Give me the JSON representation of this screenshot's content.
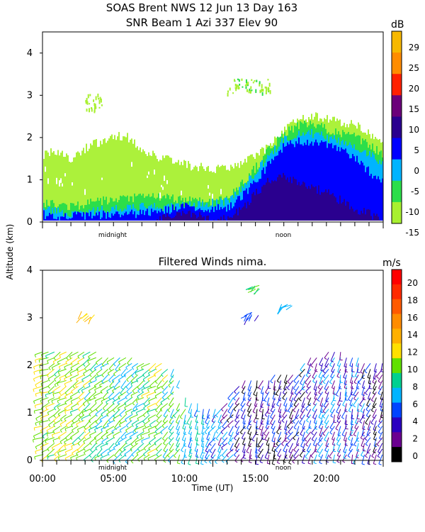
{
  "header": {
    "title_line1": "SOAS Brent NWS  12 Jun 13 Day 163",
    "title_line2": "SNR Beam 1 Azi 337 Elev 90"
  },
  "chart_data": [
    {
      "type": "heatmap",
      "title": "SNR Beam 1 Azi 337 Elev 90",
      "ylabel": "Altitude (km)",
      "xlim": [
        0,
        24
      ],
      "ylim": [
        0,
        4.5
      ],
      "yticks": [
        "0",
        "1",
        "2",
        "3",
        "4"
      ],
      "x_markers": [
        "midnight",
        "noon"
      ],
      "colorbar": {
        "unit": "dB",
        "ticks": [
          "29",
          "25",
          "20",
          "15",
          "10",
          "5",
          "0",
          "-5",
          "-10",
          "-15"
        ],
        "colors": [
          "#f7b800",
          "#ff8c00",
          "#ff2000",
          "#6b007a",
          "#2a008f",
          "#0000ff",
          "#00b4ff",
          "#2cde4a",
          "#a8f030"
        ]
      },
      "layers": [
        {
          "min_db": -15,
          "color": "#a8f030",
          "top": [
            1.6,
            1.7,
            1.5,
            1.75,
            1.9,
            2.05,
            2.0,
            1.7,
            1.55,
            1.5,
            1.35,
            1.3,
            1.25,
            1.25,
            1.4,
            1.6,
            1.8,
            2.2,
            2.4,
            2.5,
            2.45,
            2.35,
            2.3,
            2.1,
            1.9
          ]
        },
        {
          "min_db": -10,
          "color": "#2cde4a",
          "top": [
            0.45,
            0.4,
            0.38,
            0.42,
            0.5,
            0.5,
            0.55,
            0.6,
            0.6,
            0.55,
            0.55,
            0.5,
            0.5,
            0.55,
            0.9,
            1.3,
            1.75,
            2.1,
            2.3,
            2.3,
            2.2,
            2.1,
            2.0,
            1.8,
            1.6
          ]
        },
        {
          "min_db": -5,
          "color": "#00b4ff",
          "top": [
            0.3,
            0.25,
            0.22,
            0.25,
            0.28,
            0.3,
            0.32,
            0.35,
            0.35,
            0.35,
            0.4,
            0.4,
            0.45,
            0.5,
            0.8,
            1.2,
            1.6,
            1.95,
            2.1,
            2.1,
            2.0,
            1.9,
            1.8,
            1.6,
            1.4
          ]
        },
        {
          "min_db": 0,
          "color": "#0000ff",
          "top": [
            0.18,
            0.15,
            0.14,
            0.15,
            0.16,
            0.18,
            0.18,
            0.2,
            0.25,
            0.3,
            0.35,
            0.32,
            0.3,
            0.35,
            0.6,
            1.0,
            1.4,
            1.8,
            1.9,
            1.9,
            1.8,
            1.7,
            1.5,
            1.2,
            0.9
          ]
        },
        {
          "min_db": 10,
          "color": "#2a008f",
          "top": [
            0,
            0,
            0,
            0,
            0,
            0,
            0,
            0,
            0,
            0.15,
            0.2,
            0.15,
            0,
            0.1,
            0.3,
            0.7,
            1.0,
            1.1,
            0.9,
            0.8,
            0.7,
            0.5,
            0.3,
            0.2,
            0
          ]
        }
      ]
    },
    {
      "type": "scatter",
      "title": "Filtered Winds nima.",
      "xlabel": "Time (UT)",
      "ylabel": "Altitude (km)",
      "xlim": [
        0,
        24
      ],
      "ylim": [
        0,
        4
      ],
      "yticks": [
        "0",
        "1",
        "2",
        "3",
        "4"
      ],
      "xticks": [
        "00:00",
        "05:00",
        "10:00",
        "15:00",
        "20:00"
      ],
      "x_markers": [
        "midnight",
        "noon"
      ],
      "colorbar": {
        "unit": "m/s",
        "ticks": [
          "20",
          "18",
          "16",
          "14",
          "12",
          "10",
          "8",
          "6",
          "4",
          "2",
          "0"
        ],
        "colors": [
          "#ff0000",
          "#ff2a00",
          "#ff5a00",
          "#ff8c00",
          "#ffb000",
          "#ffe000",
          "#60e000",
          "#00d090",
          "#00b4ff",
          "#0044ff",
          "#2a00c0",
          "#6a0090",
          "#000000"
        ]
      },
      "barb_speed_by_hour": [
        10,
        9,
        10,
        9,
        8,
        8,
        7,
        8,
        9,
        8,
        7,
        6,
        5,
        4,
        3,
        3,
        3,
        3,
        3,
        4,
        4,
        4,
        4,
        3
      ],
      "column_top_by_hour": [
        2.4,
        2.4,
        2.4,
        2.4,
        2.3,
        2.2,
        2.2,
        2.1,
        2.1,
        2.0,
        1.8,
        1.2,
        1.1,
        1.3,
        1.7,
        1.8,
        1.8,
        1.9,
        1.9,
        2.2,
        2.3,
        2.3,
        2.2,
        2.1
      ],
      "direction_by_hour": [
        200,
        210,
        210,
        215,
        215,
        220,
        220,
        215,
        210,
        230,
        250,
        260,
        240,
        230,
        240,
        250,
        250,
        245,
        240,
        240,
        245,
        250,
        250,
        245
      ],
      "upper_clusters": [
        {
          "x": 3.2,
          "y": 3.0,
          "y2": 3.15,
          "speed": 12
        },
        {
          "x": 14.8,
          "y": 3.0,
          "y2": 3.15,
          "speed": 4
        },
        {
          "x": 14.8,
          "y": 3.6,
          "y2": 3.7,
          "speed": 8
        },
        {
          "x": 17.2,
          "y": 3.2,
          "y2": 3.3,
          "speed": 6
        }
      ]
    }
  ]
}
